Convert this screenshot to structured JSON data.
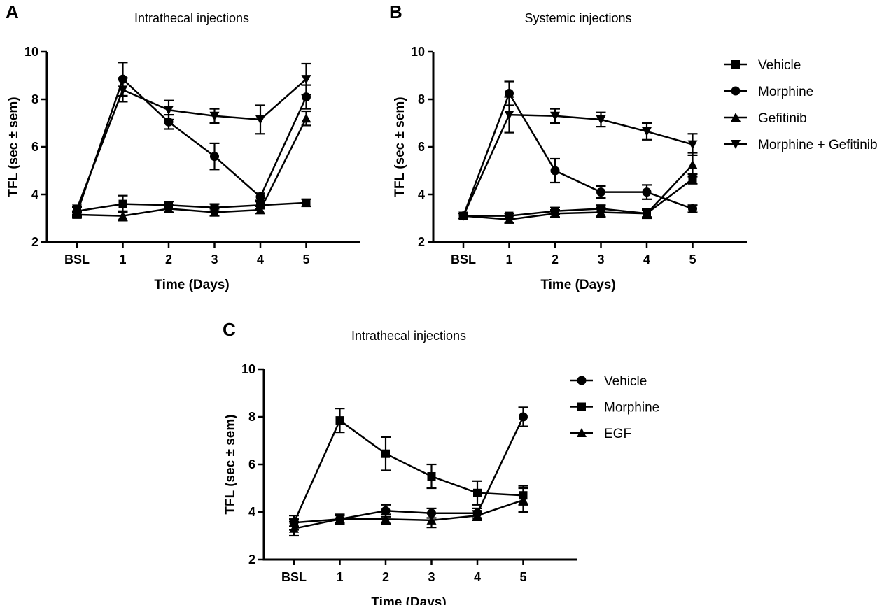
{
  "chart_data": [
    {
      "panel": "A",
      "type": "line",
      "title": "Intrathecal injections",
      "xlabel": "Time (Days)",
      "ylabel": "TFL (sec ± sem)",
      "ylim": [
        2,
        10
      ],
      "yticks": [
        2,
        4,
        6,
        8,
        10
      ],
      "categories": [
        "BSL",
        "1",
        "2",
        "3",
        "4",
        "5"
      ],
      "grid": false,
      "legend_ref": "legend_ab",
      "series": [
        {
          "name": "Vehicle",
          "marker": "square",
          "values": [
            3.3,
            3.6,
            3.55,
            3.45,
            3.55,
            3.65
          ],
          "errors": [
            0.15,
            0.35,
            0.15,
            0.15,
            0.15,
            0.15
          ]
        },
        {
          "name": "Morphine",
          "marker": "circle",
          "values": [
            3.2,
            8.85,
            7.05,
            5.6,
            3.9,
            8.1
          ],
          "errors": [
            0.1,
            0.7,
            0.3,
            0.55,
            0.15,
            0.5
          ]
        },
        {
          "name": "Gefitinib",
          "marker": "triangle-up",
          "values": [
            3.15,
            3.1,
            3.4,
            3.25,
            3.35,
            7.2
          ],
          "errors": [
            0.1,
            0.2,
            0.15,
            0.15,
            0.15,
            0.3
          ]
        },
        {
          "name": "Morphine + Gefitinib",
          "marker": "triangle-down",
          "values": [
            3.4,
            8.4,
            7.55,
            7.3,
            7.15,
            8.85
          ],
          "errors": [
            0.1,
            0.5,
            0.4,
            0.3,
            0.6,
            0.65
          ]
        }
      ]
    },
    {
      "panel": "B",
      "type": "line",
      "title": "Systemic injections",
      "xlabel": "Time (Days)",
      "ylabel": "TFL (sec ± sem)",
      "ylim": [
        2,
        10
      ],
      "yticks": [
        2,
        4,
        6,
        8,
        10
      ],
      "categories": [
        "BSL",
        "1",
        "2",
        "3",
        "4",
        "5"
      ],
      "grid": false,
      "legend_ref": "legend_ab",
      "series": [
        {
          "name": "Vehicle",
          "marker": "square",
          "values": [
            3.1,
            3.1,
            3.3,
            3.4,
            3.2,
            4.65
          ],
          "errors": [
            0.1,
            0.1,
            0.15,
            0.15,
            0.15,
            0.2
          ]
        },
        {
          "name": "Morphine",
          "marker": "circle",
          "values": [
            3.1,
            8.25,
            5.0,
            4.1,
            4.1,
            3.4
          ],
          "errors": [
            0.1,
            0.5,
            0.5,
            0.25,
            0.3,
            0.15
          ]
        },
        {
          "name": "Gefitinib",
          "marker": "triangle-up",
          "values": [
            3.1,
            2.95,
            3.2,
            3.25,
            3.2,
            5.25
          ],
          "errors": [
            0.1,
            0.15,
            0.15,
            0.2,
            0.2,
            0.5
          ]
        },
        {
          "name": "Morphine + Gefitinib",
          "marker": "triangle-down",
          "values": [
            3.1,
            7.35,
            7.3,
            7.15,
            6.65,
            6.1
          ],
          "errors": [
            0.1,
            0.75,
            0.3,
            0.3,
            0.35,
            0.45
          ]
        }
      ]
    },
    {
      "panel": "C",
      "type": "line",
      "title": "Intrathecal injections",
      "xlabel": "Time (Days)",
      "ylabel": "TFL (sec ± sem)",
      "ylim": [
        2,
        10
      ],
      "yticks": [
        2,
        4,
        6,
        8,
        10
      ],
      "categories": [
        "BSL",
        "1",
        "2",
        "3",
        "4",
        "5"
      ],
      "grid": false,
      "legend_ref": "legend_c",
      "series": [
        {
          "name": "Vehicle",
          "marker": "circle",
          "values": [
            3.55,
            3.7,
            4.05,
            3.95,
            3.95,
            8.0
          ],
          "errors": [
            0.15,
            0.2,
            0.25,
            0.2,
            0.2,
            0.4
          ]
        },
        {
          "name": "Morphine",
          "marker": "square",
          "values": [
            3.55,
            7.85,
            6.45,
            5.5,
            4.8,
            4.7
          ],
          "errors": [
            0.3,
            0.5,
            0.7,
            0.5,
            0.5,
            0.4
          ]
        },
        {
          "name": "EGF",
          "marker": "triangle-up",
          "values": [
            3.3,
            3.7,
            3.7,
            3.65,
            3.85,
            4.5
          ],
          "errors": [
            0.3,
            0.15,
            0.2,
            0.3,
            0.2,
            0.5
          ]
        }
      ]
    }
  ],
  "legend_ab": [
    {
      "label": "Vehicle",
      "marker": "square"
    },
    {
      "label": "Morphine",
      "marker": "circle"
    },
    {
      "label": "Gefitinib",
      "marker": "triangle-up"
    },
    {
      "label": "Morphine + Gefitinib",
      "marker": "triangle-down"
    }
  ],
  "legend_c": [
    {
      "label": "Vehicle",
      "marker": "circle"
    },
    {
      "label": "Morphine",
      "marker": "square"
    },
    {
      "label": "EGF",
      "marker": "triangle-up"
    }
  ],
  "colors": {
    "ink": "#000000",
    "background": "#ffffff"
  }
}
